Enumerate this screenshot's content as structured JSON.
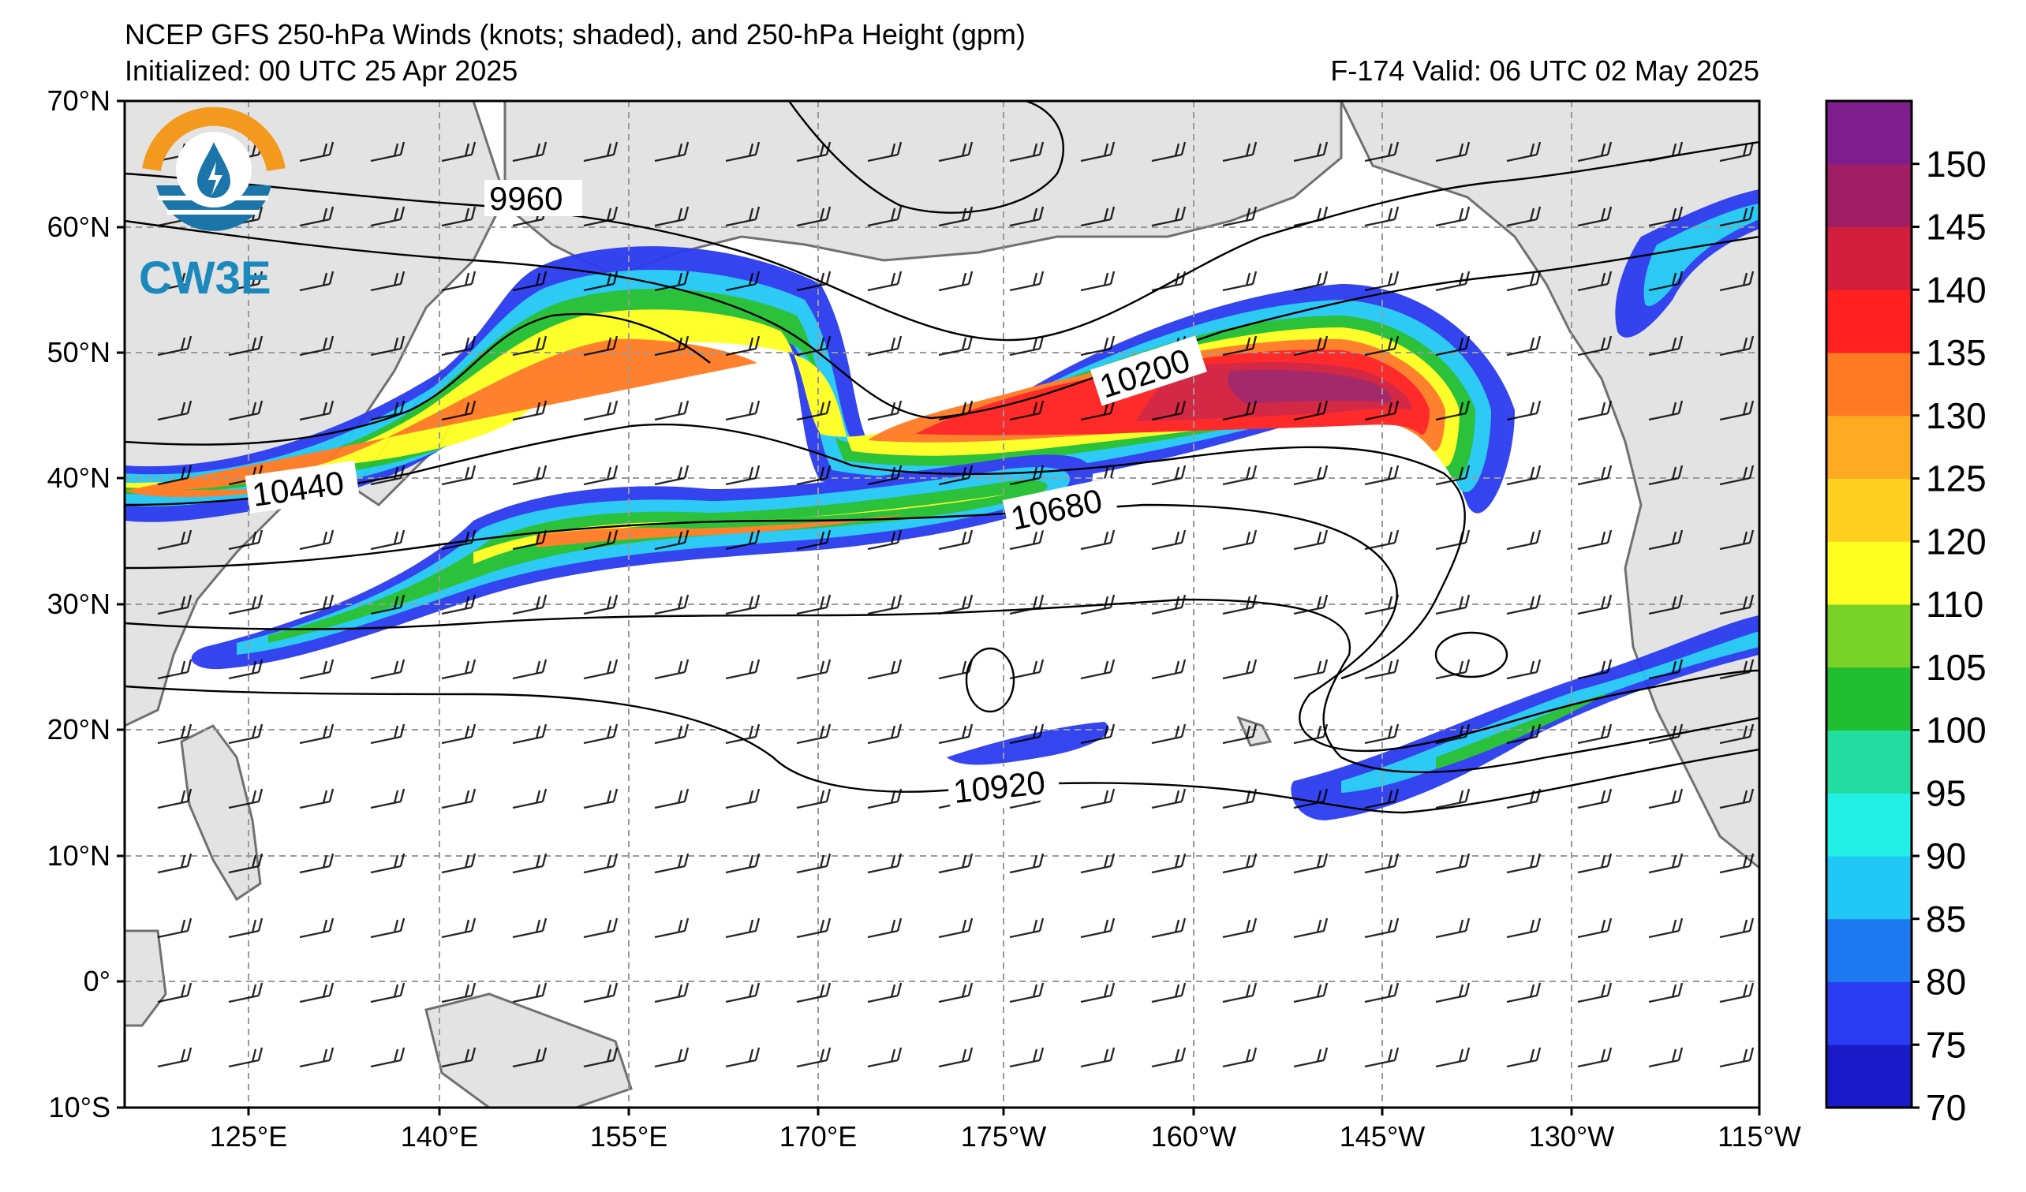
{
  "header": {
    "title": "NCEP GFS 250-hPa Winds (knots; shaded), and 250-hPa Height (gpm)",
    "initialized": "Initialized: 00 UTC 25 Apr 2025",
    "valid": "F-174  Valid: 06 UTC 02 May 2025"
  },
  "logo": {
    "text": "CW3E",
    "icon": "water-drop-logo-icon"
  },
  "map": {
    "lat_labels": [
      "70°N",
      "60°N",
      "50°N",
      "40°N",
      "30°N",
      "20°N",
      "10°N",
      "0°",
      "10°S"
    ],
    "lon_labels": [
      "125°E",
      "140°E",
      "155°E",
      "170°E",
      "175°W",
      "160°W",
      "145°W",
      "130°W",
      "115°W"
    ],
    "contour_labels": [
      "9960",
      "10200",
      "10440",
      "10680",
      "10920"
    ],
    "land_color": "#e3e3e3",
    "coast_color": "#707070",
    "grid_style": "dashed"
  },
  "colorbar": {
    "levels": [
      "70",
      "75",
      "80",
      "85",
      "90",
      "95",
      "100",
      "105",
      "110",
      "120",
      "125",
      "130",
      "135",
      "140",
      "145",
      "150"
    ],
    "colors": [
      "#1a1ac8",
      "#2a3cf0",
      "#1e78f0",
      "#22c8f5",
      "#22f0e6",
      "#22dca0",
      "#20be30",
      "#78d228",
      "#ffff20",
      "#ffd020",
      "#ffaa22",
      "#ff7a22",
      "#ff2020",
      "#d21e3c",
      "#a01e64",
      "#7d1e8c"
    ]
  }
}
